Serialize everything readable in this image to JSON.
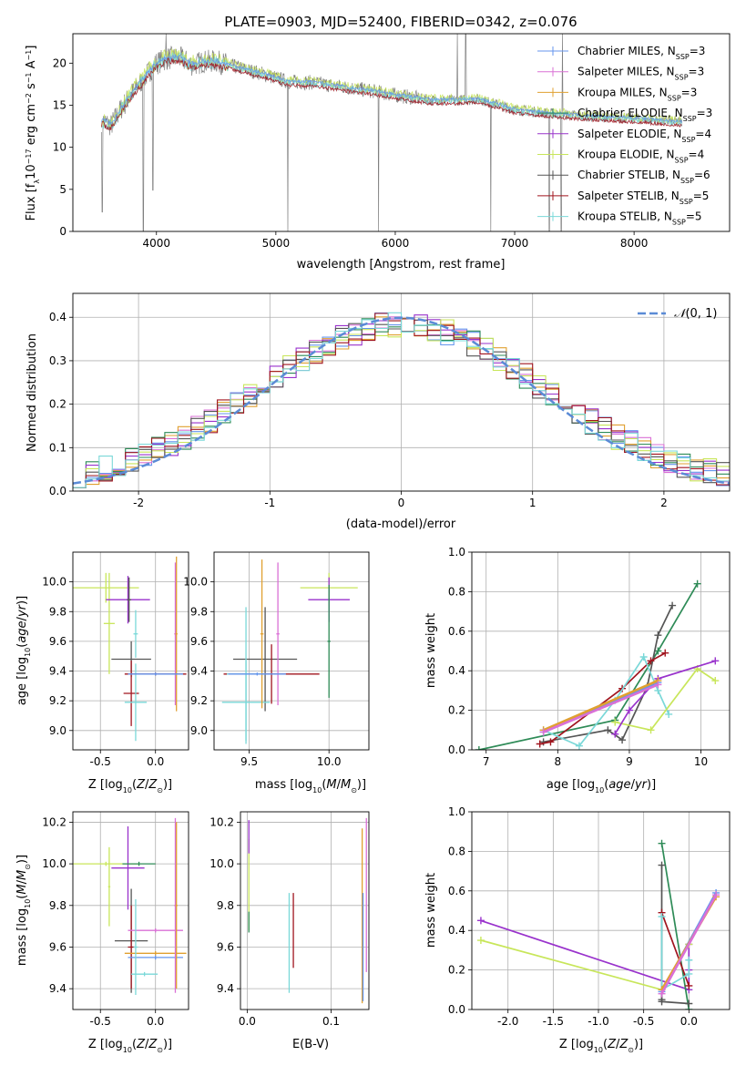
{
  "title": "PLATE=0903, MJD=52400, FIBERID=0342, z=0.076",
  "colors": {
    "Chabrier MILES": "#6495ed",
    "Salpeter MILES": "#da70d6",
    "Kroupa MILES": "#e0a030",
    "Chabrier ELODIE": "#2e8b57",
    "Salpeter ELODIE": "#9932cc",
    "Kroupa ELODIE": "#c8e65a",
    "Chabrier STELIB": "#555555",
    "Salpeter STELIB": "#a0141e",
    "Kroupa STELIB": "#7ad8d8",
    "gauss": "#5b8bd6",
    "spectrum_data": "#808080",
    "grid": "#b0b0b0"
  },
  "chart_data": [
    {
      "id": "spectrum",
      "type": "line",
      "title": "PLATE=0903, MJD=52400, FIBERID=0342, z=0.076",
      "xlabel": "wavelength [Angstrom, rest frame]",
      "ylabel": "Flux [fλ10⁻¹⁷ erg cm⁻² s⁻¹ A⁻¹]",
      "xlim": [
        3300,
        8800
      ],
      "ylim": [
        0,
        23.5
      ],
      "xticks": [
        4000,
        5000,
        6000,
        7000,
        8000
      ],
      "yticks": [
        0,
        5,
        10,
        15,
        20
      ],
      "grid": false,
      "legend_position": "top-right",
      "legend": [
        "Chabrier MILES, N_SSP=3",
        "Salpeter MILES, N_SSP=3",
        "Kroupa MILES, N_SSP=3",
        "Chabrier ELODIE, N_SSP=3",
        "Salpeter ELODIE, N_SSP=4",
        "Kroupa ELODIE, N_SSP=4",
        "Chabrier STELIB, N_SSP=6",
        "Salpeter STELIB, N_SSP=5",
        "Kroupa STELIB, N_SSP=5"
      ],
      "continuum": {
        "x": [
          3540,
          3620,
          3700,
          3800,
          3900,
          3950,
          4000,
          4100,
          4200,
          4300,
          4400,
          4500,
          4700,
          4900,
          5100,
          5300,
          5500,
          5800,
          6000,
          6300,
          6500,
          6700,
          7000,
          7300,
          7600,
          8000,
          8400
        ],
        "y": [
          13.2,
          12.6,
          14.5,
          16.5,
          18.3,
          19.2,
          20.0,
          20.6,
          20.6,
          19.8,
          20.2,
          20.2,
          19.4,
          18.7,
          17.8,
          17.7,
          17.3,
          16.7,
          16.2,
          15.6,
          15.6,
          15.7,
          14.5,
          14.0,
          13.7,
          13.4,
          13.0
        ]
      },
      "dips": [
        {
          "x": 3545,
          "y": 2.3
        },
        {
          "x": 3890,
          "y": 0.0
        },
        {
          "x": 3970,
          "y": 4.9
        },
        {
          "x": 5100,
          "y": 0.0
        },
        {
          "x": 5860,
          "y": 0.0
        },
        {
          "x": 6800,
          "y": 0.0
        },
        {
          "x": 7290,
          "y": 0.0
        },
        {
          "x": 7390,
          "y": 0.0
        }
      ],
      "spikes": [
        {
          "x": 4080,
          "y": 23.5
        },
        {
          "x": 6520,
          "y": 23.5
        },
        {
          "x": 6590,
          "y": 23.5
        },
        {
          "x": 7400,
          "y": 23.5
        }
      ]
    },
    {
      "id": "residuals",
      "type": "bar",
      "xlabel": "(data-model)/error",
      "ylabel": "Normed distribution",
      "xlim": [
        -2.5,
        2.5
      ],
      "ylim": [
        0,
        0.455
      ],
      "xticks": [
        -2,
        -1,
        0,
        1,
        2
      ],
      "yticks": [
        0.0,
        0.1,
        0.2,
        0.3,
        0.4
      ],
      "grid": true,
      "legend_position": "top-right",
      "gauss_label": "N(0, 1)",
      "bin_width": 0.1,
      "bin_start": -2.5
    },
    {
      "id": "age-vs-Z",
      "type": "scatter",
      "xlabel": "Z [log10(Z/Z⊙)]",
      "ylabel": "age  [log10(age/yr)]",
      "xlim": [
        -0.75,
        0.3
      ],
      "ylim": [
        8.87,
        10.2
      ],
      "xticks": [
        -0.5,
        0.0
      ],
      "yticks": [
        9.0,
        9.2,
        9.4,
        9.6,
        9.8,
        10.0
      ],
      "grid": true,
      "points": [
        {
          "s": "Kroupa ELODIE",
          "x": -0.45,
          "y": 9.96,
          "xe": 0.3,
          "ye": 0.1
        },
        {
          "s": "Kroupa ELODIE",
          "x": -0.42,
          "y": 9.72,
          "xe": 0.05,
          "ye": 0.34
        },
        {
          "s": "Salpeter ELODIE",
          "x": -0.25,
          "y": 9.88,
          "xe": 0.2,
          "ye": 0.16
        },
        {
          "s": "Chabrier STELIB",
          "x": -0.24,
          "y": 9.88,
          "xe": 0.02,
          "ye": 0.15
        },
        {
          "s": "Chabrier STELIB",
          "x": -0.22,
          "y": 9.48,
          "xe": 0.18,
          "ye": 0.12
        },
        {
          "s": "Salpeter STELIB",
          "x": -0.22,
          "y": 9.25,
          "xe": 0.07,
          "ye": 0.22
        },
        {
          "s": "Kroupa STELIB",
          "x": -0.18,
          "y": 9.19,
          "xe": 0.1,
          "ye": 0.26
        },
        {
          "s": "Kroupa STELIB",
          "x": -0.18,
          "y": 9.65,
          "xe": 0.02,
          "ye": 0.16
        },
        {
          "s": "Salpeter MILES",
          "x": 0.18,
          "y": 9.65,
          "xe": 0.01,
          "ye": 0.48
        },
        {
          "s": "Kroupa MILES",
          "x": 0.19,
          "y": 9.65,
          "xe": 0.01,
          "ye": 0.52
        },
        {
          "s": "Salpeter STELIB",
          "x": 0.0,
          "y": 9.38,
          "xe": 0.28,
          "ye": 0.01
        },
        {
          "s": "Chabrier MILES",
          "x": 0.0,
          "y": 9.38,
          "xe": 0.25,
          "ye": 0.01
        }
      ]
    },
    {
      "id": "age-vs-mass",
      "type": "scatter",
      "xlabel": "mass [log10(M/M⊙)]",
      "ylabel": "",
      "xlim": [
        9.28,
        10.25
      ],
      "ylim": [
        8.87,
        10.2
      ],
      "xticks": [
        9.5,
        10.0
      ],
      "yticks": [
        9.0,
        9.2,
        9.4,
        9.6,
        9.8,
        10.0
      ],
      "grid": true,
      "points": [
        {
          "s": "Kroupa ELODIE",
          "x": 10.0,
          "y": 9.96,
          "xe": 0.18,
          "ye": 0.1
        },
        {
          "s": "Salpeter ELODIE",
          "x": 10.0,
          "y": 9.88,
          "xe": 0.13,
          "ye": 0.15
        },
        {
          "s": "Chabrier STELIB",
          "x": 9.6,
          "y": 9.48,
          "xe": 0.2,
          "ye": 0.35
        },
        {
          "s": "Salpeter STELIB",
          "x": 9.64,
          "y": 9.38,
          "xe": 0.3,
          "ye": 0.2
        },
        {
          "s": "Kroupa STELIB",
          "x": 9.48,
          "y": 9.19,
          "xe": 0.15,
          "ye": 0.28
        },
        {
          "s": "Kroupa STELIB",
          "x": 9.48,
          "y": 9.38,
          "xe": 0.12,
          "ye": 0.45
        },
        {
          "s": "Salpeter MILES",
          "x": 9.68,
          "y": 9.65,
          "xe": 0.01,
          "ye": 0.48
        },
        {
          "s": "Kroupa MILES",
          "x": 9.58,
          "y": 9.65,
          "xe": 0.01,
          "ye": 0.5
        },
        {
          "s": "Chabrier MILES",
          "x": 9.55,
          "y": 9.38,
          "xe": 0.18,
          "ye": 0.01
        },
        {
          "s": "Chabrier ELODIE",
          "x": 10.0,
          "y": 9.6,
          "xe": 0.01,
          "ye": 0.38
        }
      ]
    },
    {
      "id": "weight-vs-age",
      "type": "line",
      "xlabel": "age  [log10(age/yr)]",
      "ylabel": "mass weight",
      "xlim": [
        6.8,
        10.4
      ],
      "ylim": [
        0,
        1.0
      ],
      "xticks": [
        7,
        8,
        9,
        10
      ],
      "yticks": [
        0.0,
        0.2,
        0.4,
        0.6,
        0.8,
        1.0
      ],
      "grid": true,
      "series": [
        {
          "s": "Chabrier ELODIE",
          "x": [
            6.9,
            8.8,
            9.4,
            9.95
          ],
          "y": [
            0.0,
            0.15,
            0.5,
            0.84
          ]
        },
        {
          "s": "Chabrier STELIB",
          "x": [
            7.8,
            8.7,
            8.9,
            9.25,
            9.4,
            9.6
          ],
          "y": [
            0.04,
            0.1,
            0.05,
            0.32,
            0.58,
            0.73
          ]
        },
        {
          "s": "Salpeter STELIB",
          "x": [
            7.75,
            7.9,
            8.9,
            9.3,
            9.5
          ],
          "y": [
            0.03,
            0.04,
            0.31,
            0.45,
            0.49
          ]
        },
        {
          "s": "Kroupa STELIB",
          "x": [
            7.8,
            8.3,
            8.8,
            9.2,
            9.4,
            9.55
          ],
          "y": [
            0.1,
            0.02,
            0.25,
            0.47,
            0.3,
            0.18
          ]
        },
        {
          "s": "Kroupa ELODIE",
          "x": [
            8.8,
            9.3,
            9.95,
            10.2
          ],
          "y": [
            0.14,
            0.1,
            0.41,
            0.35
          ]
        },
        {
          "s": "Salpeter ELODIE",
          "x": [
            8.8,
            9.0,
            9.4,
            10.2
          ],
          "y": [
            0.08,
            0.2,
            0.36,
            0.45
          ]
        },
        {
          "s": "Chabrier MILES",
          "x": [
            7.8,
            9.4
          ],
          "y": [
            0.09,
            0.34
          ]
        },
        {
          "s": "Kroupa MILES",
          "x": [
            7.8,
            9.4
          ],
          "y": [
            0.1,
            0.35
          ]
        },
        {
          "s": "Salpeter MILES",
          "x": [
            7.8,
            9.4
          ],
          "y": [
            0.09,
            0.33
          ]
        }
      ]
    },
    {
      "id": "mass-vs-Z",
      "type": "scatter",
      "xlabel": "Z [log10(Z/Z⊙)]",
      "ylabel": "mass [log10(M/M⊙)]",
      "xlim": [
        -0.75,
        0.3
      ],
      "ylim": [
        9.3,
        10.25
      ],
      "xticks": [
        -0.5,
        0.0
      ],
      "yticks": [
        9.4,
        9.6,
        9.8,
        10.0,
        10.2
      ],
      "grid": true,
      "points": [
        {
          "s": "Kroupa ELODIE",
          "x": -0.45,
          "y": 10.0,
          "xe": 0.3,
          "ye": 0.01
        },
        {
          "s": "Kroupa ELODIE",
          "x": -0.42,
          "y": 9.89,
          "xe": 0.01,
          "ye": 0.19
        },
        {
          "s": "Salpeter ELODIE",
          "x": -0.25,
          "y": 9.98,
          "xe": 0.15,
          "ye": 0.2
        },
        {
          "s": "Chabrier STELIB",
          "x": -0.22,
          "y": 9.63,
          "xe": 0.15,
          "ye": 0.25
        },
        {
          "s": "Salpeter STELIB",
          "x": -0.22,
          "y": 9.6,
          "xe": 0.03,
          "ye": 0.2
        },
        {
          "s": "Salpeter MILES",
          "x": 0.0,
          "y": 9.68,
          "xe": 0.25,
          "ye": 0.01
        },
        {
          "s": "Kroupa MILES",
          "x": 0.0,
          "y": 9.57,
          "xe": 0.28,
          "ye": 0.01
        },
        {
          "s": "Chabrier MILES",
          "x": 0.0,
          "y": 9.55,
          "xe": 0.25,
          "ye": 0.01
        },
        {
          "s": "Kroupa STELIB",
          "x": -0.1,
          "y": 9.47,
          "xe": 0.12,
          "ye": 0.01
        },
        {
          "s": "Kroupa STELIB",
          "x": -0.18,
          "y": 9.6,
          "xe": 0.02,
          "ye": 0.23
        },
        {
          "s": "Salpeter MILES",
          "x": 0.18,
          "y": 9.8,
          "xe": 0.01,
          "ye": 0.42
        },
        {
          "s": "Kroupa MILES",
          "x": 0.19,
          "y": 9.8,
          "xe": 0.01,
          "ye": 0.4
        },
        {
          "s": "Chabrier ELODIE",
          "x": -0.15,
          "y": 10.0,
          "xe": 0.15,
          "ye": 0.01
        }
      ]
    },
    {
      "id": "mass-vs-EBV",
      "type": "scatter",
      "xlabel": "E(B-V)",
      "ylabel": "",
      "xlim": [
        -0.008,
        0.145
      ],
      "ylim": [
        9.3,
        10.25
      ],
      "xticks": [
        0.0,
        0.1
      ],
      "yticks": [
        9.4,
        9.6,
        9.8,
        10.0,
        10.2
      ],
      "grid": true,
      "points": [
        {
          "s": "Kroupa ELODIE",
          "x": 0.002,
          "y": 9.9,
          "xe": 0.0,
          "ye": 0.22
        },
        {
          "s": "Salpeter ELODIE",
          "x": 0.002,
          "y": 10.13,
          "xe": 0.0,
          "ye": 0.08
        },
        {
          "s": "Chabrier ELODIE",
          "x": 0.002,
          "y": 9.72,
          "xe": 0.0,
          "ye": 0.05
        },
        {
          "s": "Kroupa STELIB",
          "x": 0.05,
          "y": 9.62,
          "xe": 0.0,
          "ye": 0.24
        },
        {
          "s": "Salpeter STELIB",
          "x": 0.055,
          "y": 9.68,
          "xe": 0.0,
          "ye": 0.18
        },
        {
          "s": "Kroupa MILES",
          "x": 0.137,
          "y": 9.75,
          "xe": 0.0,
          "ye": 0.42
        },
        {
          "s": "Chabrier MILES",
          "x": 0.138,
          "y": 9.6,
          "xe": 0.0,
          "ye": 0.26
        },
        {
          "s": "Salpeter MILES",
          "x": 0.142,
          "y": 9.85,
          "xe": 0.0,
          "ye": 0.37
        }
      ]
    },
    {
      "id": "weight-vs-Z",
      "type": "line",
      "xlabel": "Z [log10(Z/Z⊙)]",
      "ylabel": "mass weight",
      "xlim": [
        -2.4,
        0.45
      ],
      "ylim": [
        0,
        1.0
      ],
      "xticks": [
        -2.0,
        -1.5,
        -1.0,
        -0.5,
        0.0
      ],
      "yticks": [
        0.0,
        0.2,
        0.4,
        0.6,
        0.8,
        1.0
      ],
      "grid": true,
      "series": [
        {
          "s": "Salpeter ELODIE",
          "x": [
            -2.3,
            0.0,
            0.0,
            0.0
          ],
          "y": [
            0.45,
            0.1,
            0.2,
            0.33
          ]
        },
        {
          "s": "Kroupa ELODIE",
          "x": [
            -2.3,
            -0.3,
            0.0
          ],
          "y": [
            0.35,
            0.1,
            0.33
          ]
        },
        {
          "s": "Chabrier ELODIE",
          "x": [
            -0.3,
            0.0
          ],
          "y": [
            0.84,
            0.0
          ]
        },
        {
          "s": "Chabrier STELIB",
          "x": [
            -0.3,
            -0.3,
            -0.3,
            0.0
          ],
          "y": [
            0.73,
            0.05,
            0.04,
            0.03
          ]
        },
        {
          "s": "Salpeter STELIB",
          "x": [
            -0.3,
            0.0
          ],
          "y": [
            0.49,
            0.12
          ]
        },
        {
          "s": "Kroupa STELIB",
          "x": [
            -0.3,
            -0.3,
            0.0,
            0.0
          ],
          "y": [
            0.47,
            0.1,
            0.18,
            0.25
          ]
        },
        {
          "s": "Chabrier MILES",
          "x": [
            -0.3,
            0.3
          ],
          "y": [
            0.09,
            0.59
          ]
        },
        {
          "s": "Kroupa MILES",
          "x": [
            -0.3,
            0.3
          ],
          "y": [
            0.1,
            0.57
          ]
        },
        {
          "s": "Salpeter MILES",
          "x": [
            -0.3,
            0.3
          ],
          "y": [
            0.08,
            0.58
          ]
        }
      ]
    }
  ]
}
